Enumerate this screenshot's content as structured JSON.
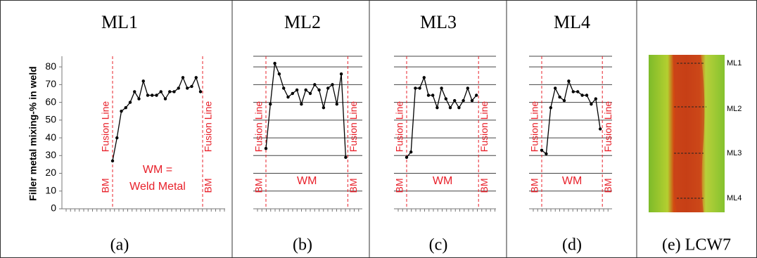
{
  "chart_data": [
    {
      "type": "line",
      "title": "ML1",
      "caption": "(a)",
      "y_label": "Filler metal mixing-% in weld",
      "color": "#000000",
      "grid": false,
      "values": [
        27,
        40,
        55,
        57,
        60,
        66,
        62,
        72,
        64,
        64,
        64,
        66,
        62,
        66,
        66,
        68,
        74,
        68,
        69,
        74,
        66
      ],
      "ylim": [
        0,
        86
      ],
      "yticks": [
        0,
        10,
        20,
        30,
        40,
        50,
        60,
        70,
        80
      ],
      "annotations": [
        "Fusion Line",
        "Fusion Line",
        "BM",
        "BM",
        "WM =",
        "Weld Metal"
      ]
    },
    {
      "type": "line",
      "title": "ML2",
      "caption": "(b)",
      "color": "#000000",
      "grid": true,
      "values": [
        34,
        59,
        82,
        76,
        68,
        63,
        65,
        67,
        59,
        67,
        65,
        70,
        67,
        57,
        68,
        70,
        59,
        76,
        29
      ],
      "ylim": [
        0,
        86
      ],
      "yticks": [
        0,
        10,
        20,
        30,
        40,
        50,
        60,
        70,
        80
      ],
      "annotations": [
        "Fusion Line",
        "Fusion Line",
        "BM",
        "BM",
        "WM"
      ]
    },
    {
      "type": "line",
      "title": "ML3",
      "caption": "(c)",
      "color": "#000000",
      "grid": true,
      "values": [
        29,
        32,
        68,
        68,
        74,
        64,
        64,
        57,
        68,
        62,
        57,
        61,
        57,
        61,
        68,
        61,
        64
      ],
      "ylim": [
        0,
        86
      ],
      "yticks": [
        0,
        10,
        20,
        30,
        40,
        50,
        60,
        70,
        80
      ],
      "annotations": [
        "Fusion Line",
        "Fusion Line",
        "BM",
        "BM",
        "WM"
      ]
    },
    {
      "type": "line",
      "title": "ML4",
      "caption": "(d)",
      "color": "#000000",
      "grid": true,
      "values": [
        33,
        31,
        57,
        68,
        63,
        61,
        72,
        66,
        66,
        64,
        64,
        59,
        62,
        45
      ],
      "ylim": [
        0,
        86
      ],
      "yticks": [
        0,
        10,
        20,
        30,
        40,
        50,
        60,
        70,
        80
      ],
      "annotations": [
        "Fusion Line",
        "Fusion Line",
        "BM",
        "BM",
        "WM"
      ]
    }
  ],
  "panel_e": {
    "caption": "(e) LCW7",
    "labels": [
      "ML1",
      "ML2",
      "ML3",
      "ML4"
    ]
  }
}
